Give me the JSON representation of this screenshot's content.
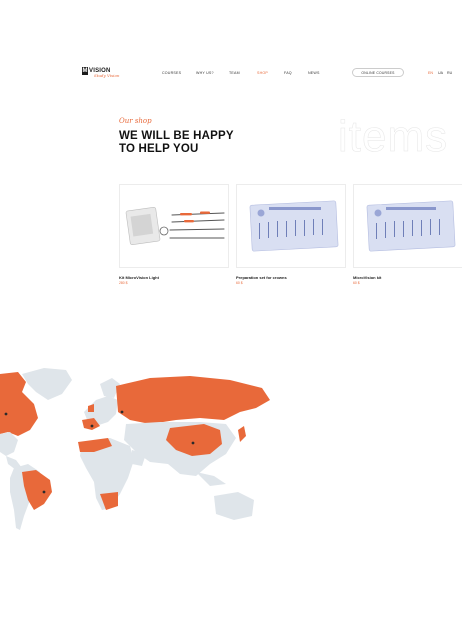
{
  "header": {
    "logo_mark": "M",
    "logo_word": "VISION",
    "logo_tagline": "Study Vision",
    "nav": [
      "COURSES",
      "WHY US?",
      "TEAM",
      "SHOP",
      "FAQ",
      "NEWS"
    ],
    "active_nav": "SHOP",
    "online_courses_label": "ONLINE COURSES",
    "languages": [
      "EN",
      "UA",
      "RU"
    ],
    "active_language": "EN"
  },
  "hero": {
    "script_title": "Our shop",
    "headline": "WE WILL BE HAPPY TO HELP YOU",
    "ghost_text": "items"
  },
  "products": [
    {
      "name": "Kit MicroVision Light",
      "price": "280 $",
      "image_icon": "dental-instruments-kit-image"
    },
    {
      "name": "Preparation set for crowns",
      "price": "60 $",
      "image_icon": "bur-set-blister-image"
    },
    {
      "name": "MicroVision kit",
      "price": "60 $",
      "image_icon": "bur-kit-blister-image"
    }
  ],
  "map": {
    "highlight_color": "#e8693a",
    "base_color": "#dfe5ea",
    "description_icon": "world-map-icon"
  },
  "colors": {
    "accent": "#e8693a",
    "text": "#111111"
  }
}
